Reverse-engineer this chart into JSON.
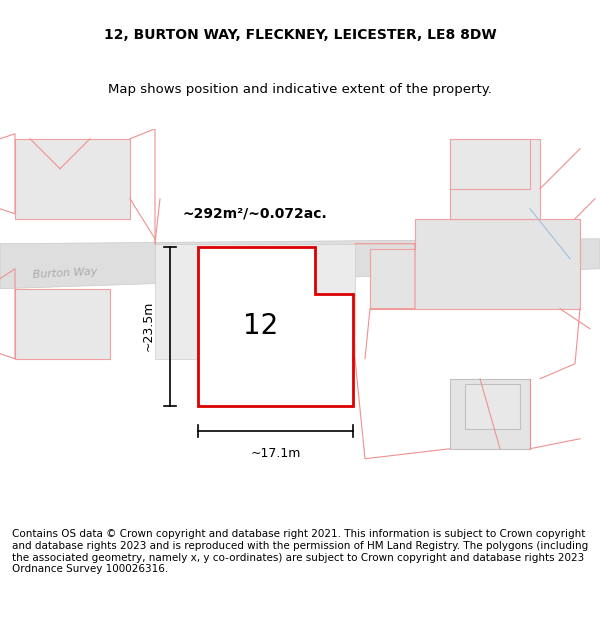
{
  "title_line1": "12, BURTON WAY, FLECKNEY, LEICESTER, LE8 8DW",
  "title_line2": "Map shows position and indicative extent of the property.",
  "footer_text": "Contains OS data © Crown copyright and database right 2021. This information is subject to Crown copyright and database rights 2023 and is reproduced with the permission of HM Land Registry. The polygons (including the associated geometry, namely x, y co-ordinates) are subject to Crown copyright and database rights 2023 Ordnance Survey 100026316.",
  "area_label": "~292m²/~0.072ac.",
  "width_label": "~17.1m",
  "height_label": "~23.5m",
  "property_number": "12",
  "bg_color": "#f5f5f5",
  "map_bg": "#ffffff",
  "road_color": "#d3d3d3",
  "building_color": "#e0e0e0",
  "outline_color": "#cccccc",
  "property_outline_color": "#dd0000",
  "road_label_color": "#aaaaaa",
  "dim_color": "#000000",
  "title_fontsize": 10,
  "footer_fontsize": 7.5
}
